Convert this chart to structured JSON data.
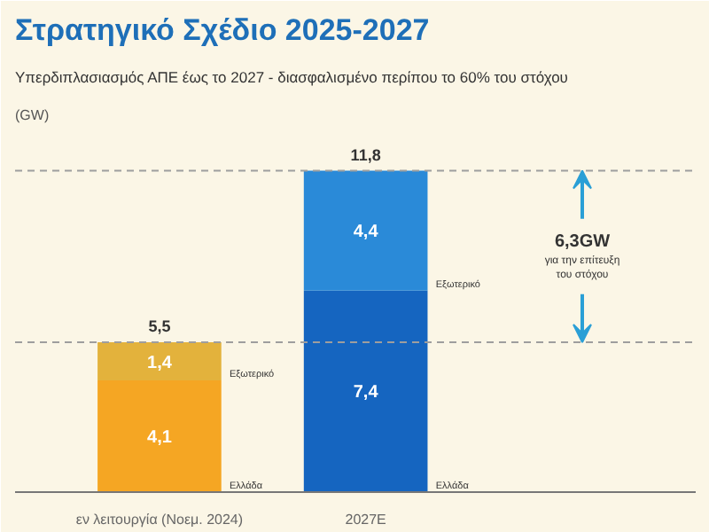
{
  "chart_data": {
    "type": "bar",
    "stacked": true,
    "title": "Στρατηγικό Σχέδιο 2025-2027",
    "subtitle": "Υπερδιπλασιασμός ΑΠΕ έως το 2027 - διασφαλισμένο περίπου το 60% του στόχου",
    "ylabel": "(GW)",
    "categories": [
      "εν λειτουργία (Νοεμ. 2024)",
      "2027E"
    ],
    "series": [
      {
        "name": "Ελλάδα",
        "colors": [
          "#f5a623",
          "#1565c0"
        ],
        "values": [
          4.1,
          7.4
        ],
        "value_labels": [
          "4,1",
          "7,4"
        ]
      },
      {
        "name": "Εξωτερικό",
        "colors": [
          "#e3b23c",
          "#2a8ad8"
        ],
        "values": [
          1.4,
          4.4
        ],
        "value_labels": [
          "1,4",
          "4,4"
        ]
      }
    ],
    "ref_lines": [
      {
        "axis": "y",
        "value": 5.5,
        "label": "5,5",
        "color": "#9e9e9e",
        "line_style": "dashed"
      },
      {
        "axis": "y",
        "value": 11.8,
        "label": "11,8",
        "color": "#9e9e9e",
        "line_style": "dashed"
      }
    ],
    "annotations": [
      "6,3GW",
      "για την επίτευξη",
      "του στόχου"
    ],
    "grid": false
  }
}
